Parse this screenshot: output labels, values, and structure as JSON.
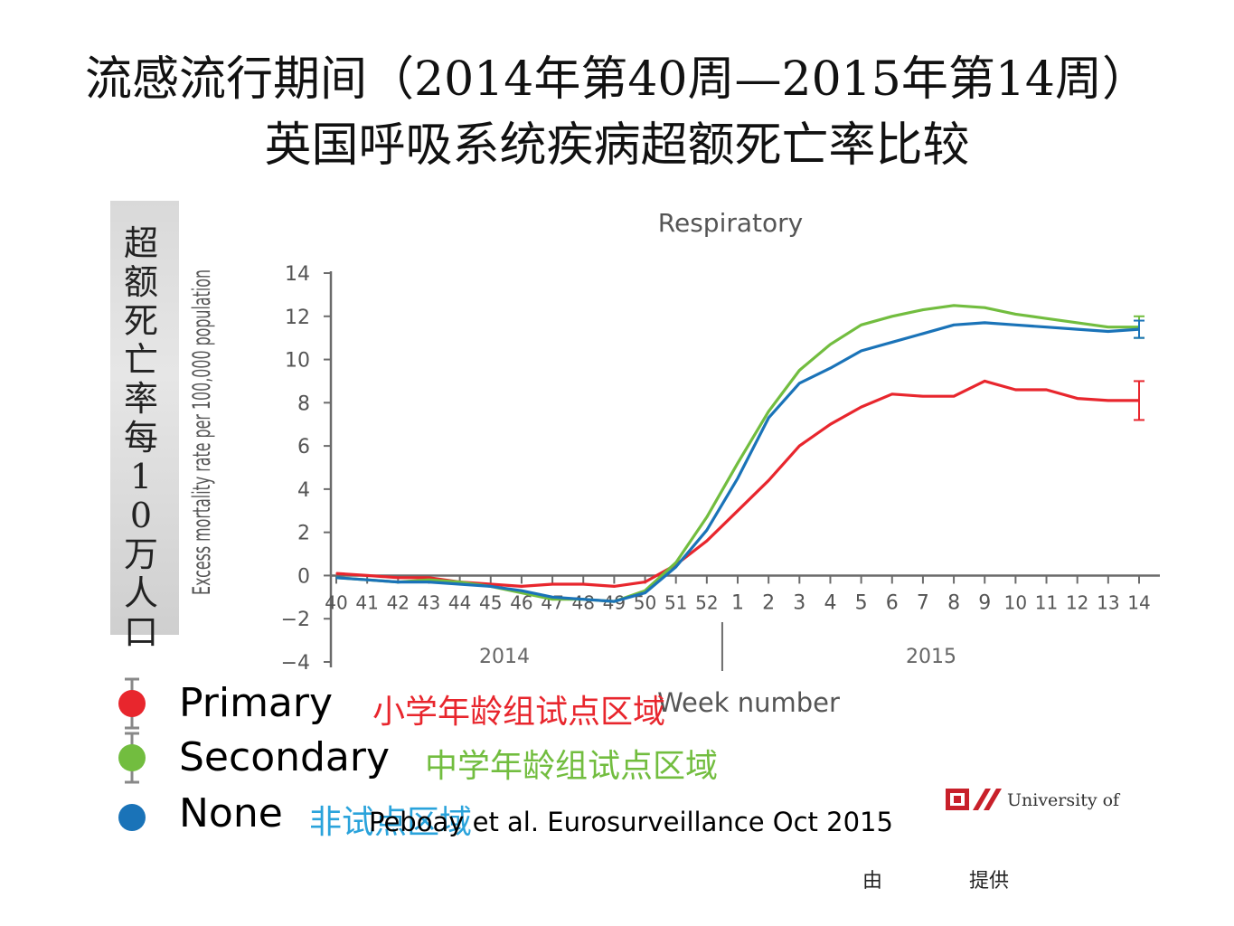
{
  "title_line1": "流感流行期间（2014年第40周—2015年第14周）",
  "title_line2": "英国呼吸系统疾病超额死亡率比较",
  "cn_ylabel": "超额死亡率每10万人口",
  "legend": [
    {
      "en": "Primary",
      "cn": "小学年龄组试点区域",
      "color": "#e8262d"
    },
    {
      "en": "Secondary",
      "cn": "中学年龄组试点区域",
      "color": "#72bd3f"
    },
    {
      "en": "None",
      "cn": "非试点区域",
      "color": "#1a73b8"
    }
  ],
  "citation": "Peboay et al. Eurosurveillance Oct 2015",
  "university": "University of",
  "footer_left": "由",
  "footer_right": "提供",
  "chart_data": {
    "type": "line",
    "title": "Respiratory",
    "xlabel": "Week number",
    "ylabel": "Excess mortality rate per 100,000 population",
    "ylim": [
      -4,
      14
    ],
    "yticks": [
      14,
      12,
      10,
      8,
      6,
      4,
      2,
      0,
      -2,
      -4
    ],
    "categories": [
      "40",
      "41",
      "42",
      "43",
      "44",
      "45",
      "46",
      "47",
      "48",
      "49",
      "50",
      "51",
      "52",
      "1",
      "2",
      "3",
      "4",
      "5",
      "6",
      "7",
      "8",
      "9",
      "10",
      "11",
      "12",
      "13",
      "14"
    ],
    "year_labels": [
      "2014",
      "2015"
    ],
    "series": [
      {
        "name": "Primary",
        "color": "#e8262d",
        "values": [
          0.1,
          0.0,
          -0.1,
          -0.1,
          -0.3,
          -0.4,
          -0.5,
          -0.4,
          -0.4,
          -0.5,
          -0.3,
          0.5,
          1.6,
          3.0,
          4.4,
          6.0,
          7.0,
          7.8,
          8.4,
          8.3,
          8.3,
          9.0,
          8.6,
          8.6,
          8.2,
          8.1,
          8.1
        ],
        "error_last": [
          7.2,
          9.0
        ]
      },
      {
        "name": "Secondary",
        "color": "#72bd3f",
        "values": [
          -0.1,
          -0.2,
          -0.3,
          -0.2,
          -0.3,
          -0.5,
          -0.8,
          -1.1,
          -1.1,
          -1.2,
          -0.7,
          0.6,
          2.7,
          5.2,
          7.6,
          9.5,
          10.7,
          11.6,
          12.0,
          12.3,
          12.5,
          12.4,
          12.1,
          11.9,
          11.7,
          11.5,
          11.5
        ],
        "error_last": [
          11.0,
          12.0
        ]
      },
      {
        "name": "None",
        "color": "#1a73b8",
        "values": [
          -0.1,
          -0.2,
          -0.3,
          -0.3,
          -0.4,
          -0.5,
          -0.7,
          -1.0,
          -1.1,
          -1.2,
          -0.8,
          0.4,
          2.1,
          4.5,
          7.3,
          8.9,
          9.6,
          10.4,
          10.8,
          11.2,
          11.6,
          11.7,
          11.6,
          11.5,
          11.4,
          11.3,
          11.4
        ],
        "error_last": [
          11.0,
          11.8
        ]
      }
    ]
  }
}
